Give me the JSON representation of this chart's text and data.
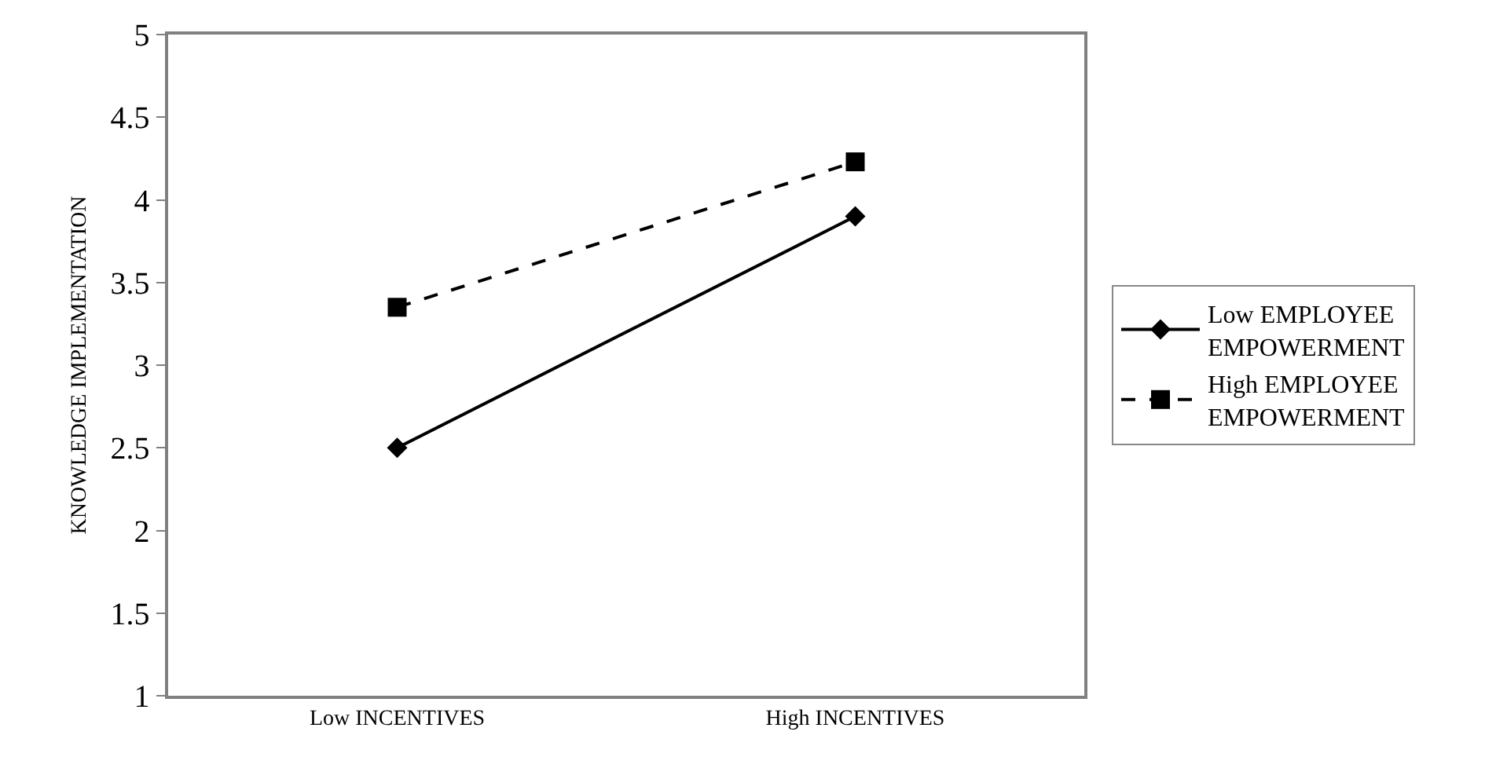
{
  "chart_data": {
    "type": "line",
    "ylabel": "KNOWLEDGE IMPLEMENTATION",
    "categories": [
      "Low INCENTIVES",
      "High INCENTIVES"
    ],
    "series": [
      {
        "name": "Low EMPLOYEE EMPOWERMENT",
        "color": "#000000",
        "values": [
          2.5,
          3.9
        ],
        "marker": "diamond",
        "line_style": "solid"
      },
      {
        "name": "High EMPLOYEE EMPOWERMENT",
        "color": "#000000",
        "values": [
          3.35,
          4.23
        ],
        "marker": "square",
        "line_style": "dashed"
      }
    ],
    "ylim": [
      1,
      5
    ],
    "yticks": [
      1,
      1.5,
      2,
      2.5,
      3,
      3.5,
      4,
      4.5,
      5
    ],
    "legend": "right"
  }
}
